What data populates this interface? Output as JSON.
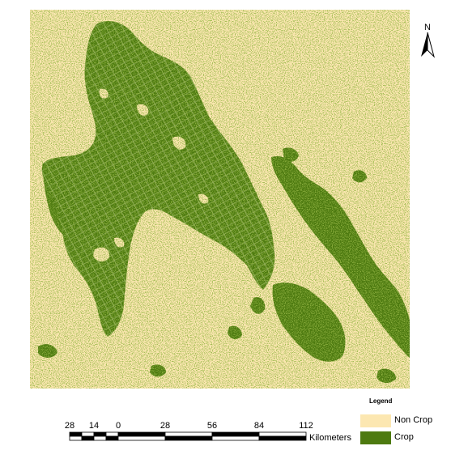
{
  "north_arrow": {
    "label": "N"
  },
  "legend": {
    "title": "Legend",
    "items": [
      {
        "label": "Non Crop",
        "color": "#fce7b1"
      },
      {
        "label": "Crop",
        "color": "#4d7a10"
      }
    ]
  },
  "scale_bar": {
    "ticks": [
      "28",
      "14",
      "0",
      "28",
      "56",
      "84",
      "112"
    ],
    "unit": "Kilometers"
  },
  "colors": {
    "background": "#fce7b1",
    "crop": "#4d7a10",
    "crop_dark": "#3e6a0c"
  }
}
